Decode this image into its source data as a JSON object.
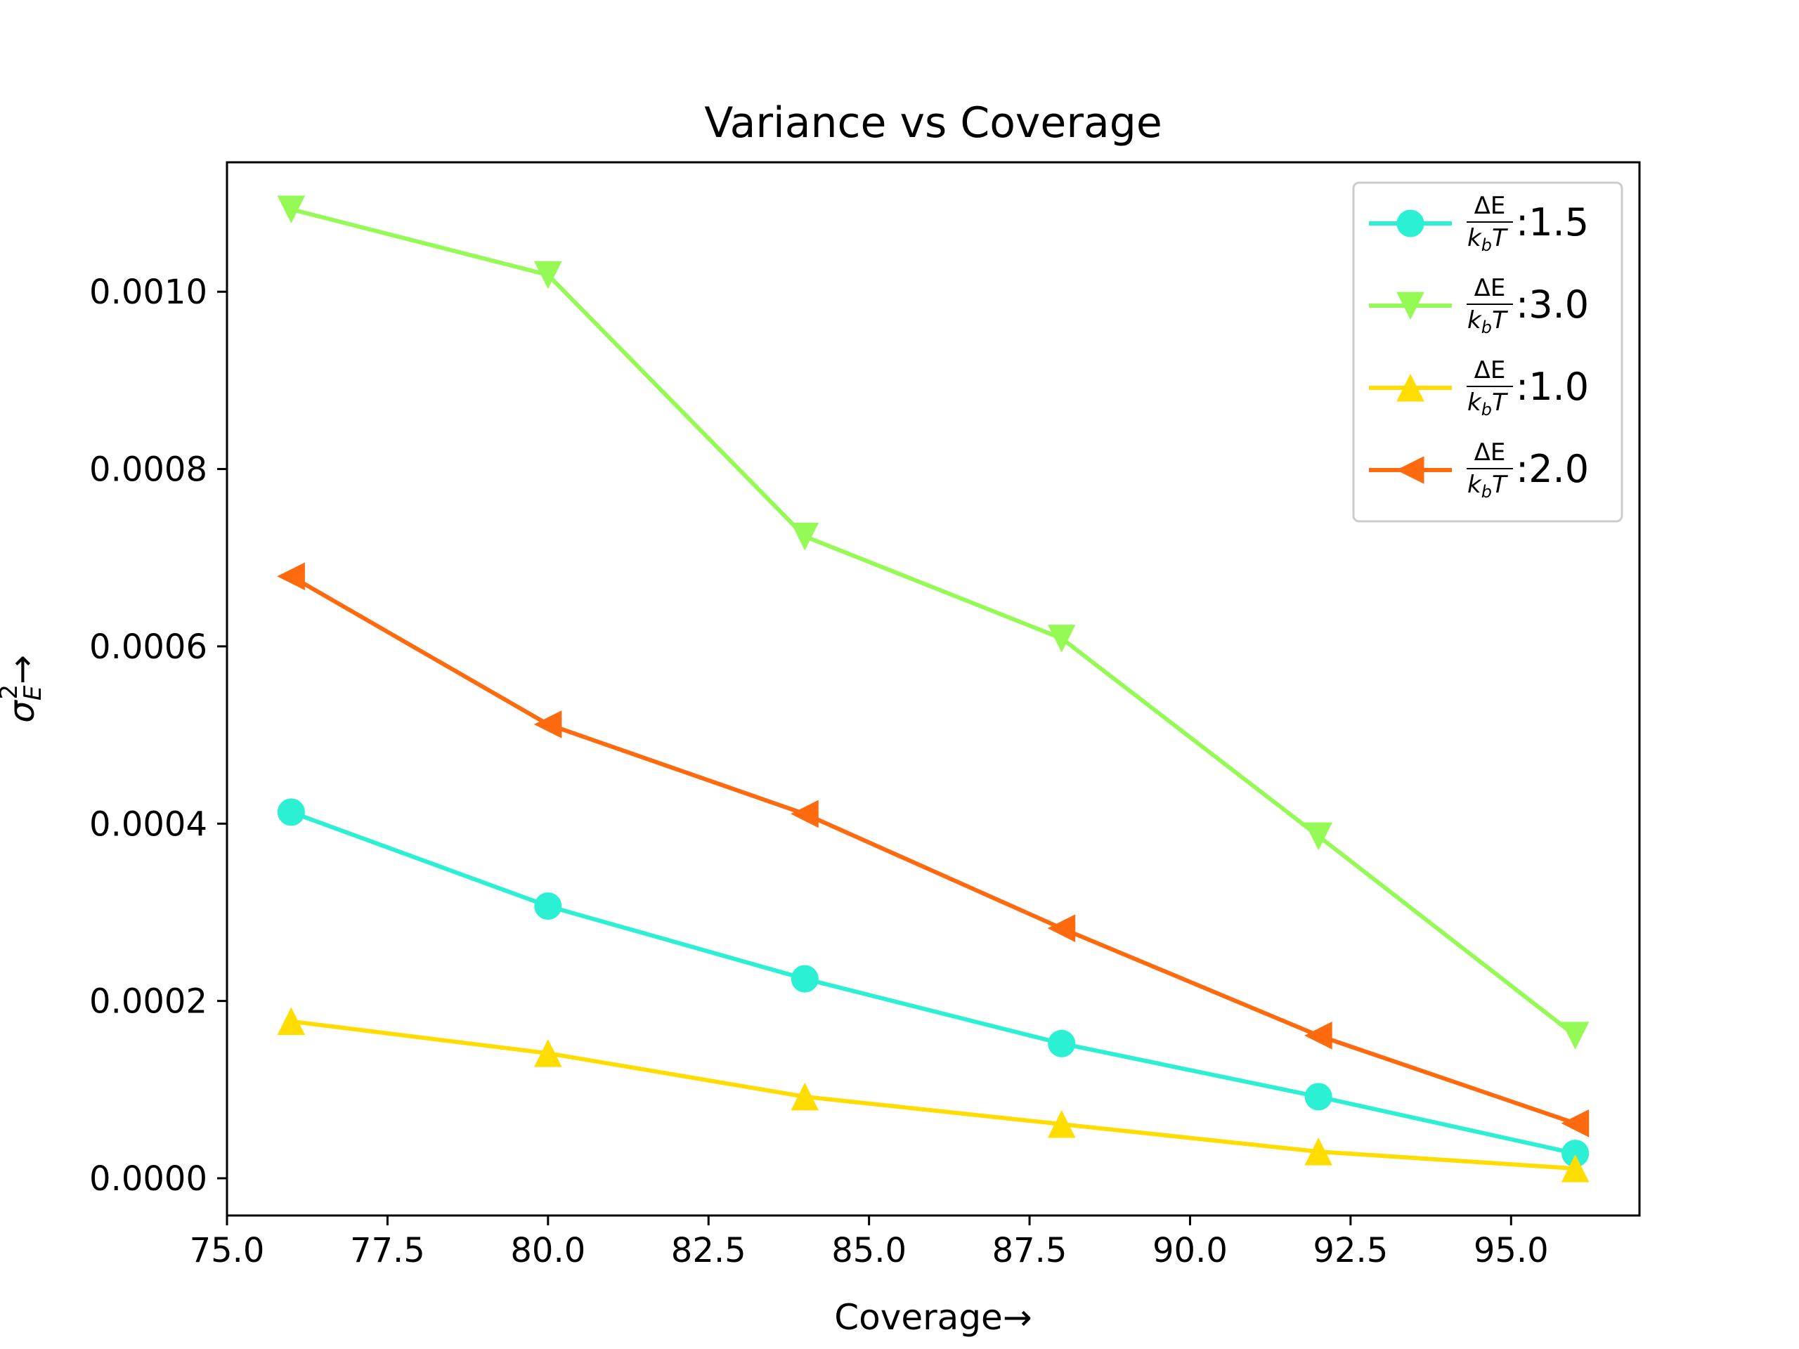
{
  "chart_data": {
    "type": "line",
    "title": "Variance vs Coverage",
    "xlabel": "Coverage→",
    "ylabel": "σ",
    "ylabel_sub": "E",
    "ylabel_sup": "2",
    "ylabel_arrow": "→",
    "xlim": [
      75,
      97
    ],
    "ylim": [
      -4.2e-05,
      0.001146
    ],
    "x_ticks": [
      75.0,
      77.5,
      80.0,
      82.5,
      85.0,
      87.5,
      90.0,
      92.5,
      95.0
    ],
    "x_tick_labels": [
      "75.0",
      "77.5",
      "80.0",
      "82.5",
      "85.0",
      "87.5",
      "90.0",
      "92.5",
      "95.0"
    ],
    "y_ticks": [
      0.0,
      0.0002,
      0.0004,
      0.0006,
      0.0008,
      0.001
    ],
    "y_tick_labels": [
      "0.0000",
      "0.0002",
      "0.0004",
      "0.0006",
      "0.0008",
      "0.0010"
    ],
    "grid": false,
    "legend_position": "top-right",
    "x": [
      76,
      80,
      84,
      88,
      92,
      96
    ],
    "series": [
      {
        "name": ":1.5",
        "legend_fraction": {
          "num": "ΔE",
          "den": "k",
          "den_sub": "b",
          "den_tail": "T"
        },
        "color": "#2cf0d3",
        "marker": "circle",
        "values": [
          0.000413,
          0.000307,
          0.000225,
          0.000152,
          9.2e-05,
          2.8e-05
        ]
      },
      {
        "name": ":3.0",
        "legend_fraction": {
          "num": "ΔE",
          "den": "k",
          "den_sub": "b",
          "den_tail": "T"
        },
        "color": "#95fa55",
        "marker": "triangle-down",
        "values": [
          0.001093,
          0.001019,
          0.000724,
          0.000609,
          0.000386,
          0.000161
        ]
      },
      {
        "name": ":1.0",
        "legend_fraction": {
          "num": "ΔE",
          "den": "k",
          "den_sub": "b",
          "den_tail": "T"
        },
        "color": "#ffdd00",
        "marker": "triangle-up",
        "values": [
          0.000177,
          0.000141,
          9.2e-05,
          6.1e-05,
          3e-05,
          1.1e-05
        ]
      },
      {
        "name": ":2.0",
        "legend_fraction": {
          "num": "ΔE",
          "den": "k",
          "den_sub": "b",
          "den_tail": "T"
        },
        "color": "#ff6a0e",
        "marker": "triangle-left",
        "values": [
          0.000679,
          0.000512,
          0.000411,
          0.000282,
          0.000161,
          6.2e-05
        ]
      }
    ]
  }
}
